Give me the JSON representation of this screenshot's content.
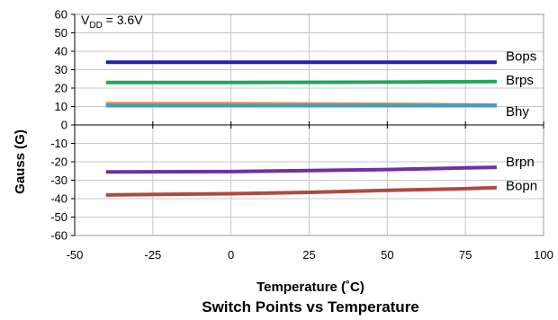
{
  "chart_data": {
    "type": "line",
    "title": "Switch Points vs Temperature",
    "xlabel": "Temperature (˚C)",
    "ylabel": "Gauss (G)",
    "xlim": [
      -50,
      100
    ],
    "ylim": [
      -60,
      60
    ],
    "xticks": [
      -50,
      -25,
      0,
      25,
      50,
      75,
      100
    ],
    "yticks": [
      60,
      50,
      40,
      30,
      20,
      10,
      0,
      -10,
      -20,
      -30,
      -40,
      -50,
      -60
    ],
    "grid": true,
    "annotation": {
      "prefix": "V",
      "subscript": "DD",
      "suffix": " = 3.6V"
    },
    "series": [
      {
        "name": "Bops",
        "color": "#1f1fb0",
        "x": [
          -40,
          85
        ],
        "y": [
          34,
          34
        ]
      },
      {
        "name": "Brps",
        "color": "#22a65a",
        "x": [
          -40,
          0,
          50,
          85
        ],
        "y": [
          23,
          23,
          23.2,
          23.5
        ]
      },
      {
        "name": "Bhy",
        "color": "#e8912e",
        "x": [
          -40,
          0,
          50,
          85
        ],
        "y": [
          11.5,
          11.5,
          11.2,
          10.8
        ]
      },
      {
        "name": "",
        "color": "#3f9bc9",
        "x": [
          -40,
          85
        ],
        "y": [
          10.5,
          10.5
        ]
      },
      {
        "name": "Brpn",
        "color": "#7030a0",
        "x": [
          -40,
          0,
          25,
          50,
          75,
          85
        ],
        "y": [
          -25.5,
          -25.3,
          -24.8,
          -24.2,
          -23.3,
          -23
        ]
      },
      {
        "name": "Bopn",
        "color": "#b04a3f",
        "x": [
          -40,
          0,
          25,
          50,
          75,
          85
        ],
        "y": [
          -38,
          -37.3,
          -36.6,
          -35.5,
          -34.6,
          -34
        ]
      }
    ]
  }
}
